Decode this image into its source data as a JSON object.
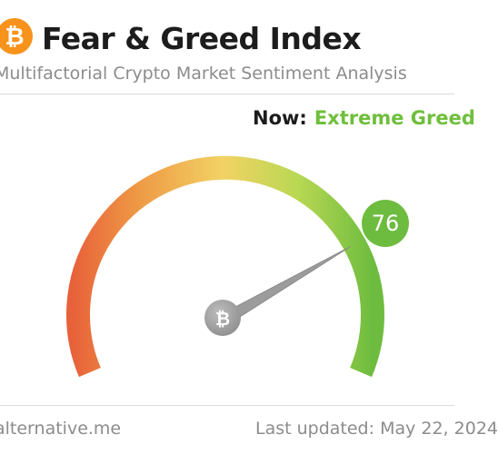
{
  "header": {
    "title": "Fear & Greed Index",
    "subtitle": "Multifactorial Crypto Market Sentiment Analysis",
    "logo_icon": "bitcoin-icon"
  },
  "now": {
    "label": "Now:",
    "classification": "Extreme Greed"
  },
  "gauge": {
    "value": "76",
    "min": 0,
    "max": 100,
    "center_icon": "bitcoin-icon"
  },
  "footer": {
    "source": "alternative.me",
    "last_updated": "Last updated: May 22, 2024"
  },
  "colors": {
    "logo": "#f7931a",
    "fear": "#e8613a",
    "neutral": "#f2d264",
    "greed": "#6ebc3f",
    "needle": "#9a9a9a"
  }
}
